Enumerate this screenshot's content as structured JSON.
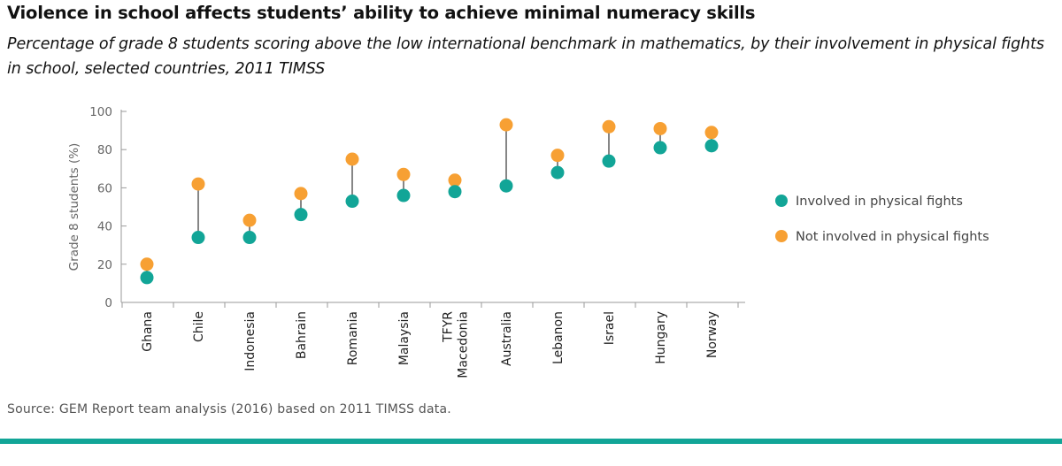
{
  "chart_data": {
    "type": "dot_range",
    "title": "Violence in school affects students’ ability to achieve minimal numeracy skills",
    "subtitle": "Percentage of grade 8 students scoring above the low international benchmark in mathematics, by their involvement in physical fights in school, selected countries, 2011 TIMSS",
    "ylabel": "Grade 8 students (%)",
    "xlabel": "",
    "ylim": [
      0,
      100
    ],
    "yticks": [
      0,
      20,
      40,
      60,
      80,
      100
    ],
    "categories": [
      [
        "Ghana"
      ],
      [
        "Chile"
      ],
      [
        "Indonesia"
      ],
      [
        "Bahrain"
      ],
      [
        "Romania"
      ],
      [
        "Malaysia"
      ],
      [
        "TFYR",
        "Macedonia"
      ],
      [
        "Australia"
      ],
      [
        "Lebanon"
      ],
      [
        "Israel"
      ],
      [
        "Hungary"
      ],
      [
        "Norway"
      ]
    ],
    "series": [
      {
        "name": "Involved in physical fights",
        "color": "#12a597",
        "values": [
          13,
          34,
          34,
          46,
          53,
          56,
          58,
          61,
          68,
          74,
          81,
          82
        ]
      },
      {
        "name": "Not involved in physical fights",
        "color": "#f7a033",
        "values": [
          20,
          62,
          43,
          57,
          75,
          67,
          64,
          93,
          77,
          92,
          91,
          89
        ]
      }
    ],
    "legend_position": "right",
    "source": "Source: GEM Report team analysis (2016) based on 2011 TIMSS data."
  }
}
